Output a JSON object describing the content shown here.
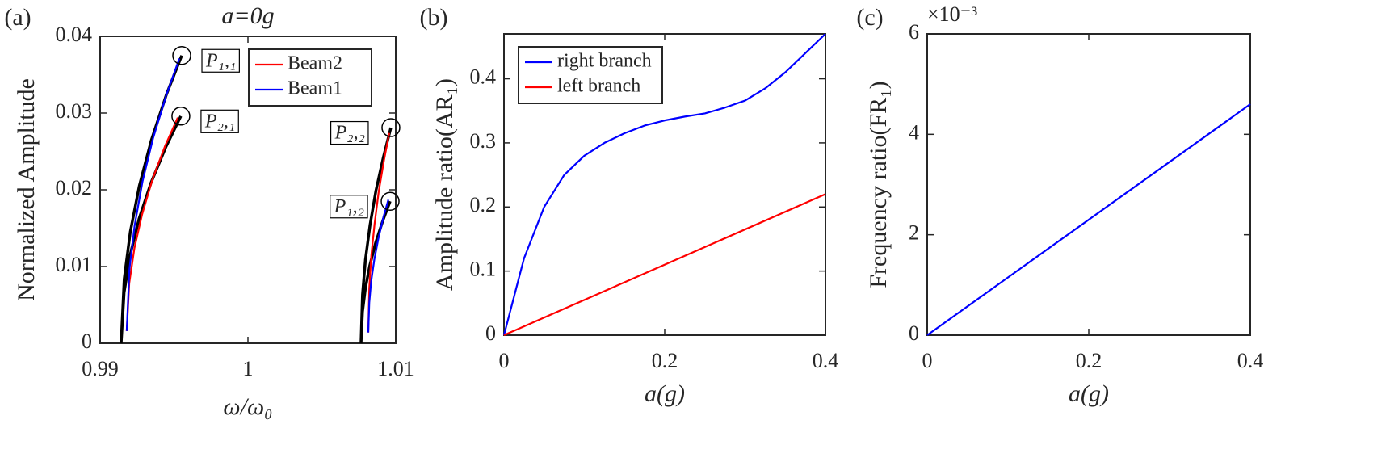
{
  "chart_data": [
    {
      "type": "line",
      "panel_label": "(a)",
      "title": "a=0g",
      "xlabel": "ω/ω₀",
      "ylabel": "Normalized Amplitude",
      "xlim": [
        0.99,
        1.01
      ],
      "ylim": [
        0,
        0.04
      ],
      "xticks": [
        0.99,
        1,
        1.01
      ],
      "yticks": [
        0,
        0.01,
        0.02,
        0.03,
        0.04
      ],
      "legend": "upper right",
      "series": [
        {
          "color": "#000000",
          "x": [
            0.99142,
            0.99163,
            0.99204,
            0.99265,
            0.99347,
            0.9945,
            0.99552,
            null,
            0.99142,
            0.99162,
            0.99203,
            0.99263,
            0.99344,
            0.99445,
            0.99546,
            null,
            1.00765,
            1.00775,
            1.00795,
            1.00826,
            1.00866,
            1.00917,
            1.00967,
            null,
            1.00765,
            1.00775,
            1.00795,
            1.00824,
            1.00864,
            1.00913,
            1.00962
          ],
          "values": [
            0,
            0.0084,
            0.0145,
            0.0205,
            0.0265,
            0.0325,
            0.0375,
            null,
            0,
            0.0066,
            0.0115,
            0.0162,
            0.0209,
            0.0256,
            0.0296,
            null,
            0,
            0.0063,
            0.0109,
            0.0154,
            0.0199,
            0.0243,
            0.0281,
            null,
            0,
            0.0041,
            0.0072,
            0.0101,
            0.0131,
            0.016,
            0.0185
          ]
        },
        {
          "name": "Beam2",
          "color": "#ff0000",
          "x": [
            0.9918,
            0.99197,
            0.99232,
            0.99284,
            0.99353,
            0.99439,
            0.99525,
            null,
            1.00814,
            1.00821,
            1.00835,
            1.00857,
            1.00885,
            1.00921,
            1.00956
          ],
          "values": [
            0.0016,
            0.0078,
            0.0124,
            0.0168,
            0.0213,
            0.0257,
            0.0294,
            null,
            0.0014,
            0.0072,
            0.0115,
            0.0156,
            0.0198,
            0.0239,
            0.0274
          ]
        },
        {
          "name": "Beam1",
          "color": "#0000ff",
          "x": [
            0.9918,
            0.99198,
            0.99233,
            0.99287,
            0.99358,
            0.99447,
            0.99536,
            null,
            1.00814,
            1.00821,
            1.00834,
            1.00855,
            1.00882,
            1.00916,
            1.0095
          ],
          "values": [
            0.0016,
            0.0096,
            0.0153,
            0.0211,
            0.0267,
            0.0323,
            0.0371,
            null,
            0.0014,
            0.0053,
            0.0081,
            0.0109,
            0.0136,
            0.0164,
            0.0187
          ]
        }
      ],
      "annotations": [
        {
          "text": "P₁,₁",
          "x": 0.99552,
          "y": 0.0375
        },
        {
          "text": "P₂,₁",
          "x": 0.99546,
          "y": 0.0296
        },
        {
          "text": "P₂,₂",
          "x": 1.00967,
          "y": 0.0281
        },
        {
          "text": "P₁,₂",
          "x": 1.00962,
          "y": 0.0185
        }
      ]
    },
    {
      "type": "line",
      "panel_label": "(b)",
      "xlabel": "a(g)",
      "ylabel": "Amplitude ratio(AR₁)",
      "xlim": [
        0,
        0.4
      ],
      "ylim": [
        0,
        0.47
      ],
      "xticks": [
        0,
        0.2,
        0.4
      ],
      "yticks": [
        0,
        0.1,
        0.2,
        0.3,
        0.4
      ],
      "legend": "upper left",
      "series": [
        {
          "name": "right branch",
          "color": "#0000ff",
          "x": [
            0,
            0.025,
            0.05,
            0.075,
            0.1,
            0.125,
            0.15,
            0.175,
            0.2,
            0.225,
            0.25,
            0.275,
            0.3,
            0.325,
            0.35,
            0.375,
            0.4
          ],
          "values": [
            0,
            0.12,
            0.2,
            0.25,
            0.28,
            0.3,
            0.315,
            0.327,
            0.335,
            0.341,
            0.346,
            0.355,
            0.366,
            0.385,
            0.41,
            0.44,
            0.47
          ]
        },
        {
          "name": "left branch",
          "color": "#ff0000",
          "x": [
            0,
            0.4
          ],
          "values": [
            0,
            0.22
          ]
        }
      ]
    },
    {
      "type": "line",
      "panel_label": "(c)",
      "xlabel": "a(g)",
      "ylabel": "Frequency ratio(FR₁)",
      "y_scale_label": "×10⁻³",
      "xlim": [
        0,
        0.4
      ],
      "ylim": [
        0,
        0.006
      ],
      "xticks": [
        0,
        0.2,
        0.4
      ],
      "yticks": [
        0,
        {
          "value": 0.002,
          "label": "2"
        },
        {
          "value": 0.004,
          "label": "4"
        },
        {
          "value": 0.006,
          "label": "6"
        }
      ],
      "series": [
        {
          "color": "#0000ff",
          "x": [
            0,
            0.4
          ],
          "values": [
            0,
            0.0046
          ]
        }
      ]
    }
  ]
}
